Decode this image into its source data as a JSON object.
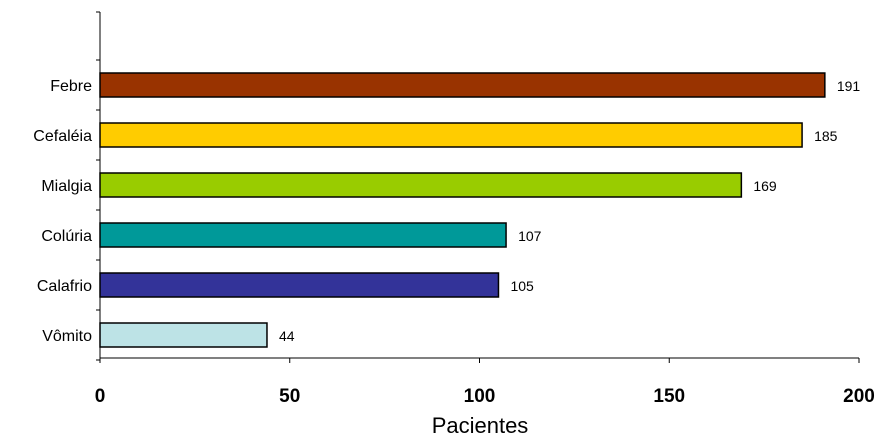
{
  "chart_data": {
    "type": "bar",
    "orientation": "horizontal",
    "categories": [
      "Febre",
      "Cefaléia",
      "Mialgia",
      "Colúria",
      "Calafrio",
      "Vômito"
    ],
    "values": [
      191,
      185,
      169,
      107,
      105,
      44
    ],
    "colors": [
      "#993300",
      "#FFCC00",
      "#99CC00",
      "#009999",
      "#333399",
      "#BDE3E6"
    ],
    "bar_edge_color": "#000000",
    "xlabel": "Pacientes",
    "ylabel": "",
    "title": "",
    "xlim": [
      0,
      200
    ],
    "x_ticks": [
      0,
      50,
      100,
      150,
      200
    ],
    "data_labels": true,
    "grid": false,
    "legend": "none"
  }
}
